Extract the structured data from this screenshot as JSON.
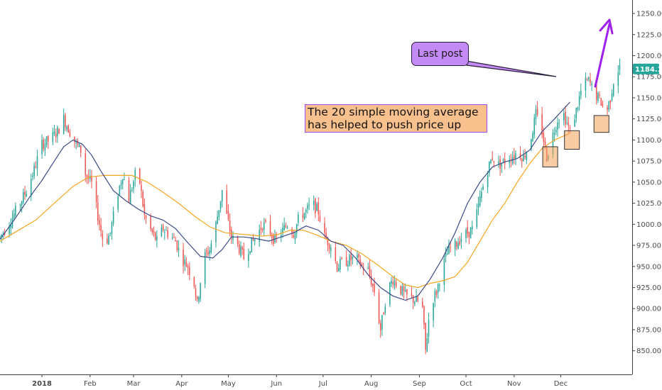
{
  "chart_data": {
    "type": "candlestick",
    "title": "",
    "xlabel": "",
    "ylabel": "",
    "ylim": [
      822,
      1266
    ],
    "y_ticks": [
      850,
      875,
      900,
      925,
      950,
      975,
      1000,
      1025,
      1050,
      1075,
      1100,
      1125,
      1150,
      1175,
      1200,
      1225,
      1250
    ],
    "x_months": [
      {
        "label": "2018",
        "day": 0,
        "bold": true
      },
      {
        "label": "Feb",
        "day": 31
      },
      {
        "label": "Mar",
        "day": 59
      },
      {
        "label": "Apr",
        "day": 90
      },
      {
        "label": "May",
        "day": 120
      },
      {
        "label": "Jun",
        "day": 151
      },
      {
        "label": "Jul",
        "day": 181
      },
      {
        "label": "Aug",
        "day": 212
      },
      {
        "label": "Sep",
        "day": 243
      },
      {
        "label": "Oct",
        "day": 273
      },
      {
        "label": "Nov",
        "day": 304
      },
      {
        "label": "Dec",
        "day": 334
      }
    ],
    "day_range": [
      -27,
      380
    ],
    "grid": false,
    "last_price": "1184.19",
    "colors": {
      "up": "#26a69a",
      "down": "#ef5350",
      "sma20": "#3c4b8a",
      "sma50": "#f5a623",
      "price_tag": "#26a69a",
      "arrow": "#a020f0"
    },
    "series": [
      {
        "name": "",
        "kind": "sma20",
        "points": [
          [
            -27,
            982
          ],
          [
            -18,
            1005
          ],
          [
            -8,
            1032
          ],
          [
            0,
            1052
          ],
          [
            8,
            1075
          ],
          [
            14,
            1092
          ],
          [
            20,
            1100
          ],
          [
            26,
            1095
          ],
          [
            32,
            1082
          ],
          [
            38,
            1063
          ],
          [
            46,
            1040
          ],
          [
            54,
            1028
          ],
          [
            62,
            1018
          ],
          [
            70,
            1010
          ],
          [
            78,
            1005
          ],
          [
            86,
            995
          ],
          [
            94,
            978
          ],
          [
            102,
            962
          ],
          [
            110,
            960
          ],
          [
            116,
            970
          ],
          [
            122,
            985
          ],
          [
            130,
            985
          ],
          [
            138,
            983
          ],
          [
            146,
            980
          ],
          [
            154,
            985
          ],
          [
            162,
            990
          ],
          [
            170,
            998
          ],
          [
            178,
            993
          ],
          [
            186,
            980
          ],
          [
            194,
            975
          ],
          [
            202,
            960
          ],
          [
            210,
            940
          ],
          [
            218,
            925
          ],
          [
            226,
            915
          ],
          [
            234,
            910
          ],
          [
            242,
            915
          ],
          [
            250,
            935
          ],
          [
            258,
            960
          ],
          [
            266,
            990
          ],
          [
            274,
            1025
          ],
          [
            282,
            1050
          ],
          [
            290,
            1068
          ],
          [
            298,
            1074
          ],
          [
            306,
            1078
          ],
          [
            314,
            1088
          ],
          [
            322,
            1110
          ],
          [
            330,
            1125
          ],
          [
            340,
            1145
          ]
        ]
      },
      {
        "name": "",
        "kind": "sma50",
        "points": [
          [
            -27,
            980
          ],
          [
            -16,
            992
          ],
          [
            -4,
            1005
          ],
          [
            8,
            1025
          ],
          [
            20,
            1045
          ],
          [
            30,
            1056
          ],
          [
            40,
            1058
          ],
          [
            50,
            1058
          ],
          [
            58,
            1058
          ],
          [
            68,
            1050
          ],
          [
            78,
            1038
          ],
          [
            88,
            1025
          ],
          [
            98,
            1010
          ],
          [
            108,
            997
          ],
          [
            118,
            990
          ],
          [
            130,
            988
          ],
          [
            142,
            986
          ],
          [
            152,
            988
          ],
          [
            160,
            993
          ],
          [
            168,
            993
          ],
          [
            176,
            988
          ],
          [
            186,
            980
          ],
          [
            196,
            975
          ],
          [
            206,
            965
          ],
          [
            216,
            952
          ],
          [
            226,
            938
          ],
          [
            234,
            928
          ],
          [
            242,
            925
          ],
          [
            250,
            930
          ],
          [
            258,
            933
          ],
          [
            266,
            938
          ],
          [
            274,
            955
          ],
          [
            282,
            980
          ],
          [
            290,
            1005
          ],
          [
            298,
            1025
          ],
          [
            306,
            1050
          ],
          [
            314,
            1072
          ],
          [
            322,
            1090
          ],
          [
            330,
            1100
          ],
          [
            340,
            1108
          ]
        ]
      }
    ],
    "candles_anchor": [
      [
        -27,
        985
      ],
      [
        -20,
        1005
      ],
      [
        -15,
        1022
      ],
      [
        -10,
        1040
      ],
      [
        -5,
        1065
      ],
      [
        0,
        1095
      ],
      [
        5,
        1100
      ],
      [
        10,
        1110
      ],
      [
        14,
        1125
      ],
      [
        18,
        1110
      ],
      [
        22,
        1095
      ],
      [
        26,
        1085
      ],
      [
        28,
        1060
      ],
      [
        32,
        1048
      ],
      [
        36,
        1010
      ],
      [
        40,
        975
      ],
      [
        44,
        990
      ],
      [
        48,
        1030
      ],
      [
        52,
        1060
      ],
      [
        56,
        1030
      ],
      [
        60,
        1058
      ],
      [
        63,
        1050
      ],
      [
        66,
        1010
      ],
      [
        70,
        993
      ],
      [
        74,
        980
      ],
      [
        78,
        995
      ],
      [
        82,
        988
      ],
      [
        86,
        980
      ],
      [
        90,
        960
      ],
      [
        94,
        950
      ],
      [
        98,
        930
      ],
      [
        100,
        905
      ],
      [
        104,
        960
      ],
      [
        108,
        970
      ],
      [
        112,
        1000
      ],
      [
        116,
        1040
      ],
      [
        119,
        1010
      ],
      [
        122,
        985
      ],
      [
        126,
        975
      ],
      [
        130,
        960
      ],
      [
        134,
        975
      ],
      [
        138,
        985
      ],
      [
        142,
        1000
      ],
      [
        146,
        995
      ],
      [
        150,
        980
      ],
      [
        154,
        990
      ],
      [
        158,
        1000
      ],
      [
        162,
        990
      ],
      [
        166,
        1010
      ],
      [
        170,
        1015
      ],
      [
        174,
        1025
      ],
      [
        178,
        1015
      ],
      [
        182,
        985
      ],
      [
        186,
        975
      ],
      [
        190,
        950
      ],
      [
        194,
        955
      ],
      [
        198,
        958
      ],
      [
        202,
        960
      ],
      [
        206,
        950
      ],
      [
        210,
        945
      ],
      [
        214,
        920
      ],
      [
        218,
        875
      ],
      [
        222,
        920
      ],
      [
        226,
        935
      ],
      [
        230,
        925
      ],
      [
        234,
        915
      ],
      [
        238,
        912
      ],
      [
        242,
        908
      ],
      [
        245,
        900
      ],
      [
        247,
        850
      ],
      [
        250,
        905
      ],
      [
        254,
        920
      ],
      [
        258,
        950
      ],
      [
        262,
        970
      ],
      [
        266,
        975
      ],
      [
        270,
        985
      ],
      [
        274,
        990
      ],
      [
        278,
        995
      ],
      [
        282,
        1030
      ],
      [
        286,
        1060
      ],
      [
        290,
        1080
      ],
      [
        294,
        1070
      ],
      [
        298,
        1075
      ],
      [
        302,
        1080
      ],
      [
        306,
        1085
      ],
      [
        310,
        1080
      ],
      [
        314,
        1095
      ],
      [
        318,
        1130
      ],
      [
        322,
        1110
      ],
      [
        325,
        1080
      ],
      [
        328,
        1100
      ],
      [
        332,
        1125
      ],
      [
        336,
        1130
      ],
      [
        340,
        1110
      ],
      [
        344,
        1135
      ],
      [
        348,
        1165
      ],
      [
        352,
        1170
      ],
      [
        356,
        1155
      ],
      [
        360,
        1145
      ],
      [
        363,
        1130
      ],
      [
        366,
        1150
      ],
      [
        369,
        1180
      ],
      [
        372,
        1185
      ]
    ],
    "boxes": [
      {
        "day": 327,
        "low": 1068,
        "high": 1092
      },
      {
        "day": 341,
        "low": 1089,
        "high": 1111
      },
      {
        "day": 360,
        "low": 1109,
        "high": 1129
      }
    ]
  },
  "annotation": {
    "note_line1": "The 20 simple moving average",
    "note_line2": "has helped to push price up",
    "callout": "Last post"
  }
}
